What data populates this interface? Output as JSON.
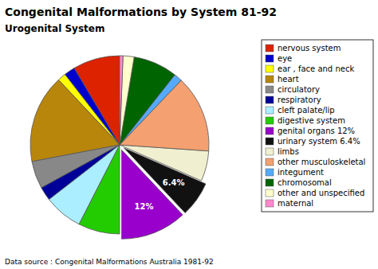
{
  "chart_data": {
    "type": "pie",
    "title": "Congenital Malformations by System 81-92",
    "subtitle": "Urogenital System",
    "footnote": "Data source : Congenital Malformations Australia 1981-92",
    "categories": [
      "nervous system",
      "eye",
      "ear , face and neck",
      "heart",
      "circulatory",
      "respiratory",
      "cleft palate/lip",
      "digestive system",
      "genital organs  12%",
      "urinary system  6.4%",
      "limbs",
      "other musculoskeletal",
      "integument",
      "chromosomal",
      "other and unspecified",
      "maternal"
    ],
    "values": [
      8.5,
      2.0,
      1.5,
      16.0,
      5.0,
      2.5,
      7.0,
      7.5,
      12.0,
      6.4,
      5.5,
      14.0,
      1.5,
      8.0,
      2.0,
      0.6
    ],
    "value_labels": [
      null,
      null,
      null,
      null,
      null,
      null,
      null,
      null,
      "12%",
      "6.4%",
      null,
      null,
      null,
      null,
      null,
      null
    ],
    "colors": [
      "#dd2200",
      "#0000cc",
      "#ffff00",
      "#b8860b",
      "#888888",
      "#000099",
      "#aaeeff",
      "#22cc00",
      "#9900cc",
      "#111111",
      "#f0f0d0",
      "#f4a070",
      "#55aaff",
      "#006400",
      "#ffffcc",
      "#ff88cc"
    ],
    "legend": "right"
  }
}
